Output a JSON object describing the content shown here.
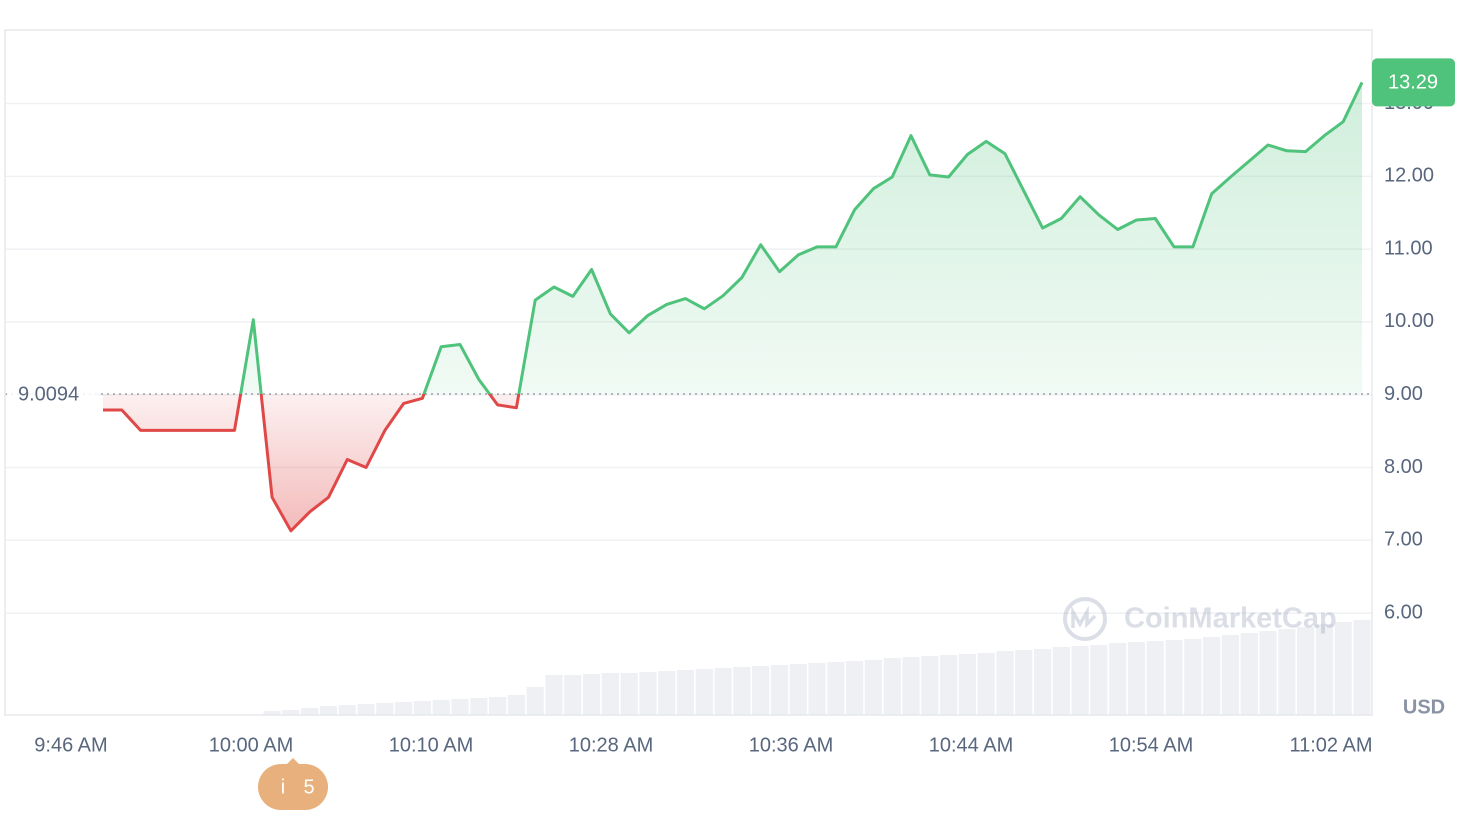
{
  "chart_data": {
    "type": "line",
    "series": [
      {
        "name": "Price",
        "color_up": "#4fc27b",
        "color_down": "#e04848",
        "values": [
          8.79,
          8.79,
          8.51,
          8.51,
          8.51,
          8.51,
          8.51,
          8.51,
          10.03,
          7.59,
          7.13,
          7.39,
          7.59,
          8.11,
          8.0,
          8.51,
          8.88,
          8.95,
          9.66,
          9.69,
          9.21,
          8.86,
          8.82,
          10.3,
          10.48,
          10.35,
          10.72,
          10.11,
          9.85,
          10.09,
          10.24,
          10.32,
          10.18,
          10.36,
          10.61,
          11.06,
          10.69,
          10.92,
          11.03,
          11.03,
          11.54,
          11.83,
          11.99,
          12.56,
          12.02,
          11.99,
          12.3,
          12.48,
          12.31,
          11.8,
          11.29,
          11.42,
          11.72,
          11.47,
          11.27,
          11.4,
          11.42,
          11.03,
          11.03,
          11.76,
          11.99,
          12.21,
          12.43,
          12.35,
          12.34,
          12.56,
          12.75,
          13.29
        ]
      }
    ],
    "volume": {
      "color": "#eff0f4",
      "values": [
        null,
        null,
        null,
        null,
        null,
        null,
        null,
        null,
        null,
        4,
        5,
        7,
        9,
        10,
        11,
        12,
        13,
        14,
        15,
        16,
        17,
        18,
        20,
        28,
        40,
        40,
        41,
        42,
        42,
        43,
        44,
        45,
        46,
        47,
        48,
        49,
        50,
        51,
        52,
        53,
        54,
        55,
        57,
        58,
        59,
        60,
        61,
        62,
        64,
        65,
        66,
        68,
        69,
        70,
        72,
        73,
        74,
        75,
        76,
        78,
        80,
        82,
        84,
        86,
        88,
        91,
        93,
        95
      ]
    },
    "baseline": 9.0094,
    "last_price": 13.29,
    "currency": "USD",
    "watermark": "CoinMarketCap",
    "event_icon": "i",
    "event_count": 5,
    "x_labels": [
      "9:46 AM",
      "10:00 AM",
      "10:10 AM",
      "10:28 AM",
      "10:36 AM",
      "10:44 AM",
      "10:54 AM",
      "11:02 AM"
    ],
    "ylim": [
      4.6,
      14.01
    ],
    "yticks": [
      {
        "value": 6,
        "label": "6.00"
      },
      {
        "value": 7,
        "label": "7.00"
      },
      {
        "value": 8,
        "label": "8.00"
      },
      {
        "value": 9,
        "label": "9.00"
      },
      {
        "value": 10,
        "label": "10.00"
      },
      {
        "value": 11,
        "label": "11.00"
      },
      {
        "value": 12,
        "label": "12.00"
      },
      {
        "value": 13,
        "label": "13.00"
      }
    ],
    "grid": true
  }
}
